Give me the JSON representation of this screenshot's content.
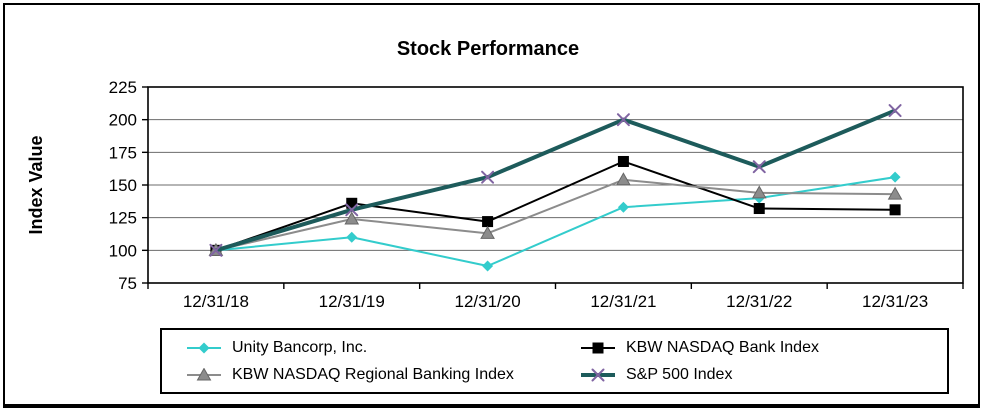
{
  "chart_data": {
    "type": "line",
    "title": "Stock Performance",
    "ylabel": "Index Value",
    "xlabel": "",
    "categories": [
      "12/31/18",
      "12/31/19",
      "12/31/20",
      "12/31/21",
      "12/31/22",
      "12/31/23"
    ],
    "ylim": [
      75,
      225
    ],
    "y_ticks": [
      75,
      100,
      125,
      150,
      175,
      200,
      225
    ],
    "grid": true,
    "legend_position": "bottom",
    "series": [
      {
        "name": "Unity Bancorp, Inc.",
        "marker": "diamond",
        "color": "#33cccc",
        "marker_color": "#33cccc",
        "line_width": 2,
        "values": [
          100,
          110,
          88,
          133,
          140,
          156
        ]
      },
      {
        "name": "KBW NASDAQ Bank Index",
        "marker": "square",
        "color": "#000000",
        "marker_color": "#000000",
        "line_width": 2,
        "values": [
          100,
          136,
          122,
          168,
          132,
          131
        ]
      },
      {
        "name": "KBW NASDAQ Regional Banking Index",
        "marker": "triangle",
        "color": "#8c8c8c",
        "marker_color": "#8c8c8c",
        "line_width": 2,
        "values": [
          100,
          124,
          113,
          154,
          144,
          143
        ]
      },
      {
        "name": "S&P 500 Index",
        "marker": "x",
        "color": "#1d5b5b",
        "marker_color": "#8064a2",
        "line_width": 4,
        "values": [
          100,
          131,
          156,
          200,
          164,
          207
        ]
      }
    ]
  }
}
